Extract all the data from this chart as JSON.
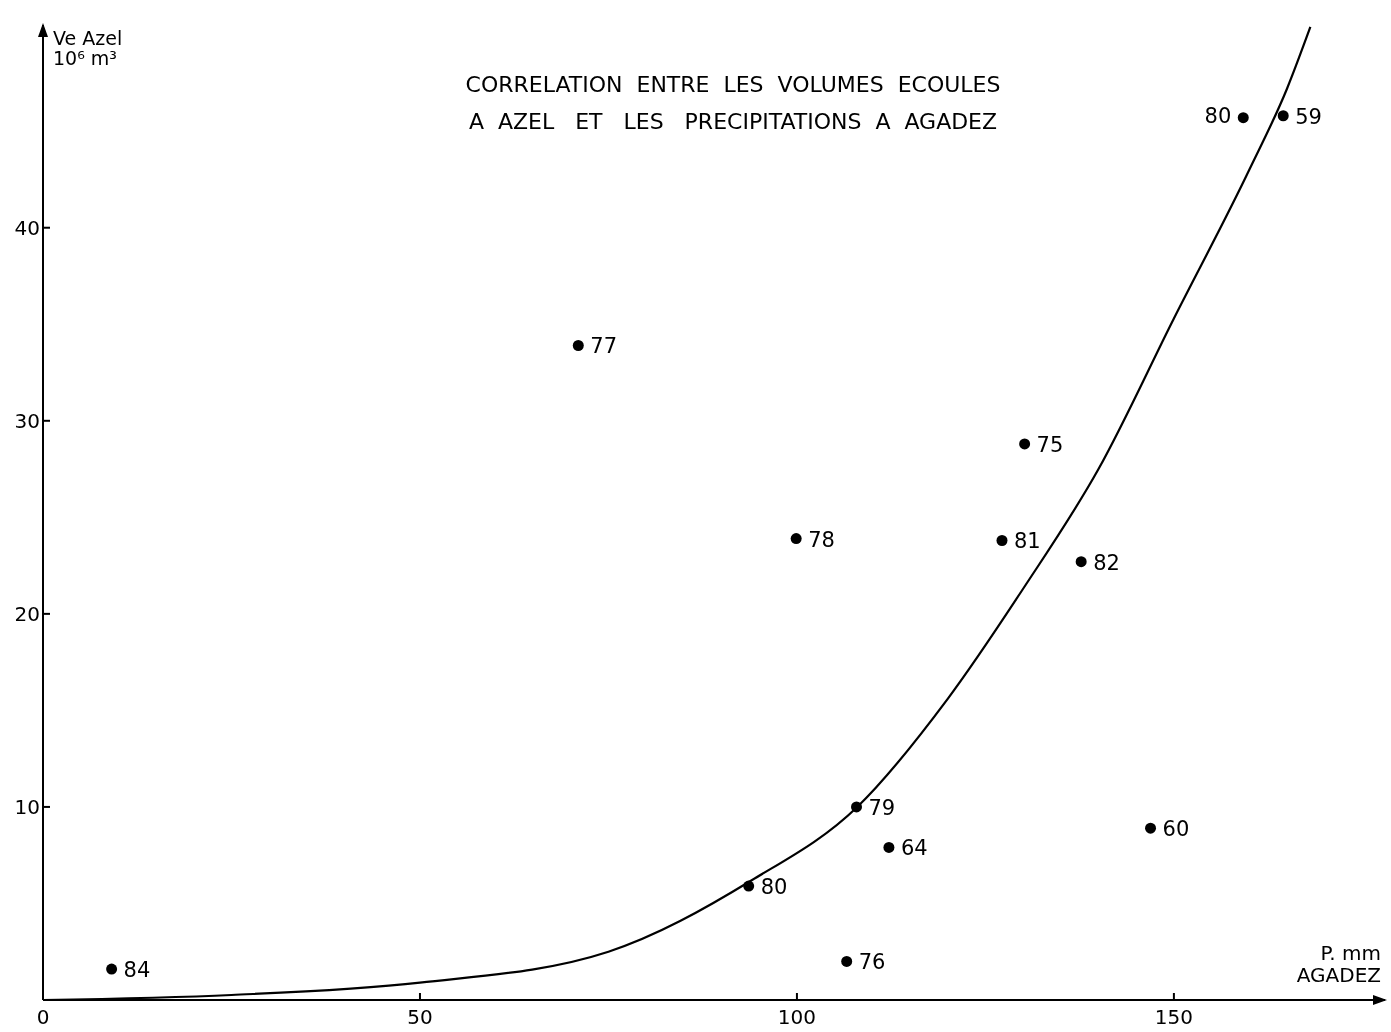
{
  "chart_data": {
    "type": "scatter",
    "title": "CORRELATION  ENTRE  LES  VOLUMES  ECOULES\nA  AZEL   ET   LES   PRECIPITATIONS  A  AGADEZ",
    "xlabel": "P. mm\nAGADEZ",
    "ylabel": "Ve Azel\n10⁶ m³",
    "xlim": [
      0,
      178
    ],
    "ylim": [
      0,
      50.5
    ],
    "xticks": [
      0,
      50,
      100,
      150
    ],
    "yticks": [
      10,
      20,
      30,
      40
    ],
    "grid": false,
    "marker": "circle",
    "series": [
      {
        "color": "#000000",
        "x": [
          9.1,
          71.0,
          99.9,
          130.2,
          127.2,
          137.7,
          159.2,
          164.5,
          107.9,
          112.2,
          93.6,
          106.6,
          146.9
        ],
        "values": [
          1.6,
          33.9,
          23.9,
          28.8,
          23.8,
          22.7,
          45.7,
          45.8,
          10.0,
          7.9,
          5.9,
          2.0,
          8.9
        ]
      },
      {
        "type": "line",
        "color": "#000000",
        "marker": "none",
        "line_style": "solid",
        "x": [
          0,
          25,
          50,
          75,
          94,
          108,
          120,
          130,
          140,
          150,
          160,
          165,
          168.1
        ],
        "values": [
          0,
          0.26,
          0.9,
          2.5,
          6.2,
          10,
          15.6,
          21.3,
          27.5,
          35.3,
          43.0,
          47.2,
          50.4
        ]
      }
    ],
    "annotations": [
      {
        "text": "84",
        "x": 9.1,
        "y": 1.6
      },
      {
        "text": "77",
        "x": 71.0,
        "y": 33.9
      },
      {
        "text": "78",
        "x": 99.9,
        "y": 23.9
      },
      {
        "text": "75",
        "x": 130.2,
        "y": 28.8
      },
      {
        "text": "81",
        "x": 127.2,
        "y": 23.8
      },
      {
        "text": "82",
        "x": 137.7,
        "y": 22.7
      },
      {
        "text": "80",
        "x": 159.2,
        "y": 45.7
      },
      {
        "text": "59",
        "x": 164.5,
        "y": 45.8
      },
      {
        "text": "79",
        "x": 107.9,
        "y": 10.0
      },
      {
        "text": "64",
        "x": 112.2,
        "y": 7.9
      },
      {
        "text": "80",
        "x": 93.6,
        "y": 5.9
      },
      {
        "text": "76",
        "x": 106.6,
        "y": 2.0
      },
      {
        "text": "60",
        "x": 146.9,
        "y": 8.9
      }
    ]
  }
}
